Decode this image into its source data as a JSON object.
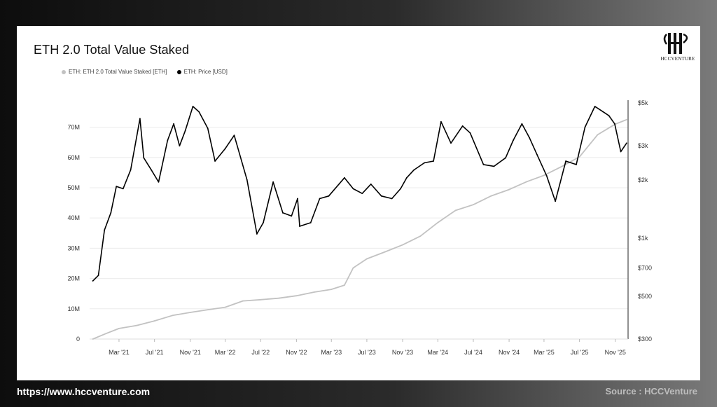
{
  "title": "ETH 2.0 Total Value Staked",
  "logo_text": "HCCVENTURE",
  "footer": {
    "url": "https://www.hccventure.com",
    "source": "Source : HCCVenture"
  },
  "chart_data": {
    "type": "line",
    "title": "ETH 2.0 Total Value Staked",
    "legend_placement": "top-left",
    "grid": true,
    "x_ticks": [
      "Mar '21",
      "Jul '21",
      "Nov '21",
      "Mar '22",
      "Jul '22",
      "Nov '22",
      "Mar '23",
      "Jul '23",
      "Nov '23",
      "Mar '24",
      "Jul '24",
      "Nov '24",
      "Mar '25",
      "Jul '25",
      "Nov '25"
    ],
    "y_left_ticks": [
      "0",
      "10M",
      "20M",
      "30M",
      "40M",
      "50M",
      "60M",
      "70M"
    ],
    "y_left_range": [
      0,
      78000000
    ],
    "y_right_ticks": [
      "$5k",
      "$3k",
      "$2k",
      "$1k",
      "$700",
      "$500",
      "$300"
    ],
    "y_right_scale": "log",
    "y_right_range": [
      300,
      5000
    ],
    "series": [
      {
        "name": "ETH: ETH 2.0 Total Value Staked [ETH]",
        "axis": "left",
        "color": "#c2c2c2",
        "x": [
          "2020-12-01",
          "2021-01-15",
          "2021-03-01",
          "2021-05-01",
          "2021-07-01",
          "2021-09-01",
          "2021-11-01",
          "2022-01-01",
          "2022-03-01",
          "2022-05-01",
          "2022-07-01",
          "2022-09-01",
          "2022-11-01",
          "2023-01-01",
          "2023-03-01",
          "2023-04-15",
          "2023-05-15",
          "2023-07-01",
          "2023-09-01",
          "2023-11-01",
          "2024-01-01",
          "2024-03-01",
          "2024-05-01",
          "2024-07-01",
          "2024-09-01",
          "2024-11-01",
          "2025-01-01",
          "2025-03-01",
          "2025-05-01",
          "2025-07-01",
          "2025-09-01",
          "2025-11-01",
          "2025-12-10"
        ],
        "values": [
          0,
          1800000,
          3500000,
          4500000,
          6000000,
          7800000,
          8800000,
          9700000,
          10500000,
          12600000,
          13000000,
          13500000,
          14300000,
          15500000,
          16400000,
          17800000,
          23500000,
          26500000,
          28800000,
          31100000,
          34000000,
          38500000,
          42500000,
          44400000,
          47300000,
          49400000,
          52000000,
          54100000,
          57000000,
          60200000,
          67500000,
          71000000,
          72500000
        ]
      },
      {
        "name": "ETH: Price [USD]",
        "axis": "right",
        "color": "#000000",
        "x": [
          "2020-12-01",
          "2020-12-20",
          "2021-01-10",
          "2021-02-01",
          "2021-02-20",
          "2021-03-15",
          "2021-04-10",
          "2021-05-12",
          "2021-05-25",
          "2021-06-20",
          "2021-07-15",
          "2021-08-15",
          "2021-09-05",
          "2021-09-25",
          "2021-10-15",
          "2021-11-10",
          "2021-12-01",
          "2021-12-31",
          "2022-01-25",
          "2022-03-01",
          "2022-04-01",
          "2022-05-15",
          "2022-06-18",
          "2022-07-10",
          "2022-08-13",
          "2022-09-15",
          "2022-10-15",
          "2022-11-05",
          "2022-11-12",
          "2022-12-20",
          "2023-01-20",
          "2023-02-20",
          "2023-04-15",
          "2023-05-15",
          "2023-06-15",
          "2023-07-15",
          "2023-08-20",
          "2023-09-25",
          "2023-10-25",
          "2023-11-15",
          "2023-12-10",
          "2024-01-15",
          "2024-02-15",
          "2024-03-12",
          "2024-04-15",
          "2024-05-25",
          "2024-06-20",
          "2024-08-05",
          "2024-09-10",
          "2024-10-20",
          "2024-11-15",
          "2024-12-15",
          "2025-01-10",
          "2025-02-05",
          "2025-03-10",
          "2025-04-09",
          "2025-05-15",
          "2025-06-20",
          "2025-07-20",
          "2025-08-23",
          "2025-09-20",
          "2025-10-10",
          "2025-10-30",
          "2025-11-20",
          "2025-12-10"
        ],
        "values": [
          600,
          640,
          1100,
          1350,
          1850,
          1800,
          2250,
          4150,
          2600,
          2250,
          1950,
          3200,
          3900,
          3000,
          3600,
          4800,
          4500,
          3700,
          2500,
          2900,
          3400,
          2000,
          1050,
          1200,
          1950,
          1350,
          1300,
          1600,
          1150,
          1200,
          1600,
          1650,
          2050,
          1800,
          1700,
          1900,
          1650,
          1600,
          1800,
          2050,
          2250,
          2450,
          2500,
          4000,
          3100,
          3800,
          3500,
          2400,
          2350,
          2600,
          3200,
          3900,
          3300,
          2700,
          2100,
          1550,
          2500,
          2400,
          3750,
          4800,
          4500,
          4300,
          3900,
          2800,
          3100
        ]
      }
    ]
  }
}
